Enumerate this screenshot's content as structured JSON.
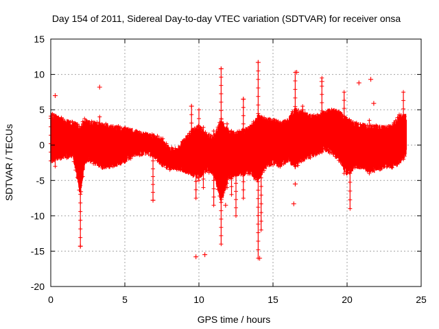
{
  "chart_data": {
    "type": "scatter",
    "title": "Day 154 of 2011, Sidereal Day-to-day VTEC variation (SDTVAR) for receiver onsa",
    "xlabel": "GPS time / hours",
    "ylabel": "SDTVAR / TECUs",
    "xlim": [
      0,
      25
    ],
    "ylim": [
      -20,
      15
    ],
    "xticks": [
      0,
      5,
      10,
      15,
      20,
      25
    ],
    "yticks": [
      -20,
      -15,
      -10,
      -5,
      0,
      5,
      10,
      15
    ],
    "grid": true,
    "marker": "+",
    "series_color": "#ff0000",
    "band": [
      [
        0.0,
        -2.2,
        4.3
      ],
      [
        0.5,
        -1.8,
        3.8
      ],
      [
        1.0,
        -1.6,
        3.4
      ],
      [
        1.5,
        -1.5,
        3.2
      ],
      [
        2.0,
        -7.0,
        2.5
      ],
      [
        2.3,
        -2.5,
        3.5
      ],
      [
        2.5,
        -2.0,
        3.2
      ],
      [
        3.0,
        -2.5,
        3.0
      ],
      [
        3.5,
        -3.0,
        2.8
      ],
      [
        4.0,
        -2.9,
        2.6
      ],
      [
        4.5,
        -2.6,
        2.4
      ],
      [
        5.0,
        -2.2,
        2.2
      ],
      [
        5.5,
        -1.5,
        2.0
      ],
      [
        6.0,
        -1.2,
        1.7
      ],
      [
        6.5,
        -1.0,
        1.4
      ],
      [
        7.0,
        -1.5,
        1.2
      ],
      [
        7.5,
        -2.7,
        0.8
      ],
      [
        8.0,
        -3.2,
        -0.5
      ],
      [
        8.5,
        -3.2,
        -0.8
      ],
      [
        9.0,
        -3.5,
        0.6
      ],
      [
        9.5,
        -4.0,
        2.0
      ],
      [
        10.0,
        -4.5,
        2.5
      ],
      [
        10.5,
        -3.5,
        1.5
      ],
      [
        11.0,
        -3.8,
        1.0
      ],
      [
        11.5,
        -8.0,
        3.5
      ],
      [
        12.0,
        -4.5,
        1.8
      ],
      [
        12.5,
        -4.0,
        1.5
      ],
      [
        13.0,
        -4.0,
        2.0
      ],
      [
        13.5,
        -3.8,
        2.5
      ],
      [
        14.0,
        -5.0,
        4.0
      ],
      [
        14.5,
        -3.0,
        3.5
      ],
      [
        15.0,
        -2.5,
        3.5
      ],
      [
        15.5,
        -2.8,
        3.0
      ],
      [
        16.0,
        -2.0,
        3.5
      ],
      [
        16.5,
        -3.0,
        5.0
      ],
      [
        17.0,
        -2.0,
        4.5
      ],
      [
        17.5,
        -1.5,
        4.0
      ],
      [
        18.0,
        -1.0,
        4.0
      ],
      [
        18.5,
        -0.5,
        4.5
      ],
      [
        19.0,
        -1.0,
        5.0
      ],
      [
        19.5,
        -2.0,
        4.5
      ],
      [
        20.0,
        -4.0,
        3.5
      ],
      [
        20.5,
        -3.0,
        3.0
      ],
      [
        21.0,
        -3.0,
        2.8
      ],
      [
        21.5,
        -3.5,
        2.5
      ],
      [
        22.0,
        -3.5,
        2.5
      ],
      [
        22.5,
        -3.0,
        2.5
      ],
      [
        23.0,
        -3.0,
        2.5
      ],
      [
        23.5,
        -2.5,
        4.0
      ],
      [
        24.0,
        -1.0,
        4.0
      ]
    ],
    "spikes": [
      [
        0.0,
        -1.0,
        3.8
      ],
      [
        0.3,
        -3.0,
        2.0
      ],
      [
        2.0,
        -14.3,
        -4.5
      ],
      [
        3.3,
        0.5,
        4.0
      ],
      [
        6.9,
        -7.8,
        0.0
      ],
      [
        9.5,
        -4.0,
        5.5
      ],
      [
        9.8,
        -7.5,
        2.0
      ],
      [
        10.0,
        -5.0,
        5.0
      ],
      [
        10.3,
        -6.0,
        2.5
      ],
      [
        11.0,
        -8.5,
        2.0
      ],
      [
        11.5,
        -14.0,
        10.8
      ],
      [
        11.9,
        -6.0,
        3.0
      ],
      [
        12.2,
        -7.0,
        2.0
      ],
      [
        12.5,
        -10.0,
        1.5
      ],
      [
        13.0,
        -7.5,
        6.5
      ],
      [
        14.0,
        -16.0,
        11.7
      ],
      [
        14.2,
        -12.0,
        4.0
      ],
      [
        16.5,
        -3.0,
        10.3
      ],
      [
        17.0,
        -1.0,
        5.5
      ],
      [
        18.3,
        -1.0,
        9.5
      ],
      [
        19.8,
        -4.0,
        7.5
      ],
      [
        20.2,
        -9.0,
        1.0
      ],
      [
        21.5,
        -4.0,
        3.5
      ],
      [
        23.8,
        -2.0,
        7.5
      ]
    ],
    "outliers": [
      [
        0.3,
        7.0
      ],
      [
        3.3,
        8.2
      ],
      [
        9.8,
        -15.8
      ],
      [
        10.4,
        -15.5
      ],
      [
        11.5,
        10.8
      ],
      [
        14.0,
        11.7
      ],
      [
        14.1,
        -16.0
      ],
      [
        16.4,
        -8.3
      ],
      [
        16.6,
        10.3
      ],
      [
        16.5,
        -5.5
      ],
      [
        18.3,
        9.0
      ],
      [
        20.8,
        8.8
      ],
      [
        21.6,
        9.3
      ],
      [
        21.8,
        5.9
      ],
      [
        2.0,
        -14.3
      ],
      [
        6.9,
        -7.8
      ],
      [
        13.0,
        6.5
      ],
      [
        9.5,
        5.5
      ],
      [
        11.8,
        -8.5
      ],
      [
        17.0,
        5.0
      ]
    ]
  }
}
